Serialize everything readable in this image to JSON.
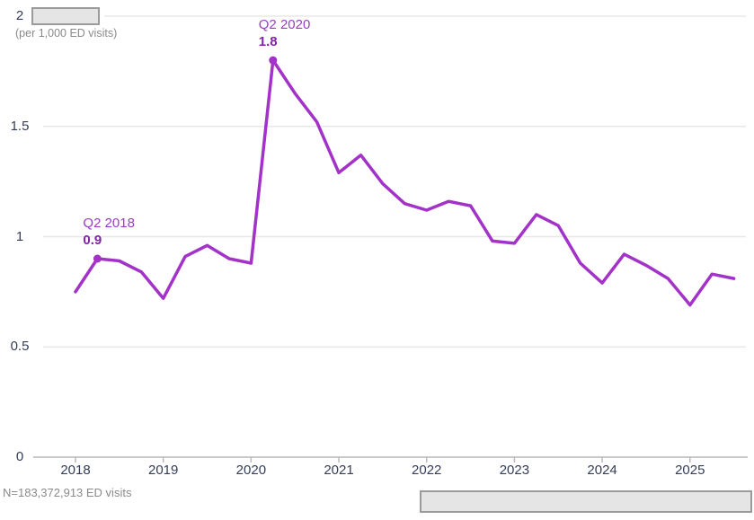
{
  "chart_data": {
    "type": "line",
    "unit_label": "(per 1,000 ED visits)",
    "footnote": "N=183,372,913 ED visits",
    "y_axis": {
      "range": [
        0,
        2
      ],
      "tick_values": [
        0,
        0.5,
        1,
        1.5,
        2
      ],
      "tick_labels": [
        "0",
        "0.5",
        "1",
        "1.5",
        "2"
      ],
      "gridline_values": [
        0.5,
        1,
        1.5,
        2
      ],
      "grid": true
    },
    "x_axis": {
      "tick_labels": [
        "2018",
        "2019",
        "2020",
        "2021",
        "2022",
        "2023",
        "2024",
        "2025"
      ],
      "quarters_per_year": 4
    },
    "series": [
      {
        "name": "rate-per-1000-ed-visits",
        "quarters": [
          "2018 Q1",
          "2018 Q2",
          "2018 Q3",
          "2018 Q4",
          "2019 Q1",
          "2019 Q2",
          "2019 Q3",
          "2019 Q4",
          "2020 Q1",
          "2020 Q2",
          "2020 Q3",
          "2020 Q4",
          "2021 Q1",
          "2021 Q2",
          "2021 Q3",
          "2021 Q4",
          "2022 Q1",
          "2022 Q2",
          "2022 Q3",
          "2022 Q4",
          "2023 Q1",
          "2023 Q2",
          "2023 Q3",
          "2023 Q4",
          "2024 Q1",
          "2024 Q2",
          "2024 Q3",
          "2024 Q4",
          "2025 Q1",
          "2025 Q2",
          "2025 Q3"
        ],
        "values": [
          0.75,
          0.9,
          0.89,
          0.84,
          0.72,
          0.91,
          0.96,
          0.9,
          0.88,
          1.8,
          1.65,
          1.52,
          1.29,
          1.37,
          1.24,
          1.15,
          1.12,
          1.16,
          1.14,
          0.98,
          0.97,
          1.1,
          1.05,
          0.88,
          0.79,
          0.92,
          0.87,
          0.81,
          0.69,
          0.83,
          0.81
        ]
      }
    ],
    "annotations": [
      {
        "id": "q2-2018",
        "quarter": "2018 Q2",
        "label": "Q2 2018",
        "value_text": "0.9"
      },
      {
        "id": "q2-2020",
        "quarter": "2020 Q2",
        "label": "Q2 2020",
        "value_text": "1.8"
      }
    ],
    "colors": {
      "line": "#a232c8",
      "annotation_label": "#9d3bc7",
      "annotation_value": "#8122a7",
      "axis_text": "#343d58",
      "muted_text": "#8a8a8a",
      "gridline": "#e8e8e8",
      "axis_line": "#b9b9b9",
      "redaction_fill": "#e5e5e5",
      "redaction_border": "#9b9b9b"
    }
  }
}
